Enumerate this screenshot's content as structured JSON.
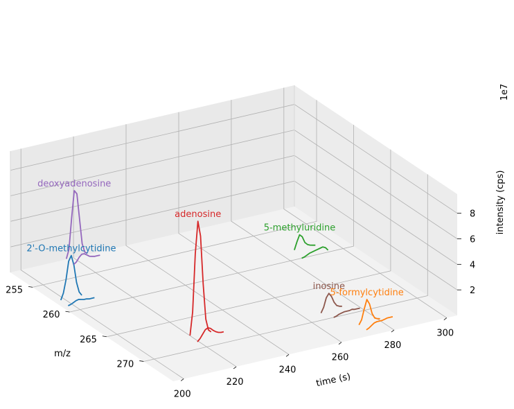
{
  "chart_data": {
    "type": "line",
    "projection": "3d",
    "xlabel": "time (s)",
    "ylabel": "m/z",
    "zlabel": "intensity (cps)",
    "z_offset_label": "1e7",
    "xlim": [
      196,
      304
    ],
    "ylim": [
      252,
      274
    ],
    "zlim": [
      0,
      9.5
    ],
    "z_units": "1e7 cps",
    "x_ticks": [
      "200",
      "220",
      "240",
      "260",
      "280",
      "300"
    ],
    "y_ticks": [
      "255",
      "260",
      "265",
      "270"
    ],
    "z_ticks": [
      "2",
      "4",
      "6",
      "8"
    ],
    "grid": true,
    "series": [
      {
        "name": "2'-O-methylcytidine",
        "color": "#1f77b4",
        "mz": 258.1,
        "t": [
          198,
          199,
          200,
          201,
          202,
          203,
          204,
          205,
          206
        ],
        "intensity": [
          0.1,
          0.6,
          1.6,
          3.0,
          3.4,
          2.6,
          1.2,
          0.4,
          0.1
        ],
        "satellite": {
          "mz": 259.1,
          "t": [
            198,
            199,
            200,
            201,
            202,
            203,
            204,
            205,
            206,
            207,
            208
          ],
          "intensity": [
            0.05,
            0.1,
            0.2,
            0.3,
            0.35,
            0.3,
            0.25,
            0.25,
            0.2,
            0.2,
            0.2
          ]
        }
      },
      {
        "name": "deoxyadenosine",
        "color": "#9467bd",
        "mz": 252.1,
        "t": [
          217,
          218,
          219,
          220,
          221,
          222,
          223,
          224,
          225
        ],
        "intensity": [
          0.1,
          0.8,
          3.2,
          5.3,
          5.0,
          3.0,
          1.0,
          0.3,
          0.15
        ],
        "satellite": {
          "mz": 253.1,
          "t": [
            217,
            218,
            219,
            220,
            221,
            222,
            223,
            224,
            225,
            226,
            227
          ],
          "intensity": [
            0.05,
            0.2,
            0.5,
            0.7,
            0.7,
            0.55,
            0.4,
            0.35,
            0.3,
            0.3,
            0.3
          ]
        }
      },
      {
        "name": "adenosine",
        "color": "#d62728",
        "mz": 268.1,
        "t": [
          219,
          220,
          221,
          222,
          223,
          224,
          225,
          226,
          227
        ],
        "intensity": [
          0.2,
          2.0,
          6.5,
          9.0,
          7.8,
          4.0,
          1.2,
          0.3,
          0.1
        ],
        "satellite": {
          "mz": 269.1,
          "t": [
            219,
            220,
            221,
            222,
            223,
            224,
            225,
            226,
            227,
            228,
            229
          ],
          "intensity": [
            0.1,
            0.3,
            0.6,
            0.9,
            1.0,
            0.9,
            0.7,
            0.55,
            0.45,
            0.4,
            0.4
          ]
        }
      },
      {
        "name": "5-methyluridine",
        "color": "#2ca02c",
        "mz": 259.1,
        "t": [
          284,
          285,
          286,
          287,
          288,
          289,
          290,
          291,
          292
        ],
        "intensity": [
          0.3,
          0.9,
          1.4,
          1.2,
          0.7,
          0.5,
          0.4,
          0.35,
          0.3
        ],
        "satellite": {
          "mz": 260.1,
          "t": [
            284,
            285,
            286,
            287,
            288,
            289,
            290,
            291,
            292,
            293,
            294
          ],
          "intensity": [
            0.05,
            0.1,
            0.2,
            0.3,
            0.35,
            0.4,
            0.45,
            0.5,
            0.55,
            0.45,
            0.2
          ]
        }
      },
      {
        "name": "inosine",
        "color": "#8c564b",
        "mz": 269.1,
        "t": [
          266,
          267,
          268,
          269,
          270,
          271,
          272,
          273,
          274
        ],
        "intensity": [
          0.1,
          0.5,
          1.2,
          1.5,
          1.2,
          0.7,
          0.4,
          0.3,
          0.25
        ],
        "satellite": {
          "mz": 270.1,
          "t": [
            268,
            269,
            270,
            271,
            272,
            273,
            274,
            275,
            276,
            277,
            278
          ],
          "intensity": [
            0.05,
            0.1,
            0.2,
            0.25,
            0.3,
            0.3,
            0.3,
            0.35,
            0.3,
            0.3,
            0.3
          ]
        }
      },
      {
        "name": "5-formylcytidine",
        "color": "#ff7f0e",
        "mz": 272.1,
        "t": [
          272,
          273,
          274,
          275,
          276,
          277,
          278,
          279,
          280
        ],
        "intensity": [
          0.05,
          0.4,
          1.2,
          1.9,
          1.5,
          0.7,
          0.3,
          0.2,
          0.15
        ],
        "satellite": {
          "mz": 273.1,
          "t": [
            272,
            273,
            274,
            275,
            276,
            277,
            278,
            279,
            280,
            281,
            282
          ],
          "intensity": [
            0.05,
            0.15,
            0.3,
            0.45,
            0.5,
            0.5,
            0.5,
            0.55,
            0.6,
            0.6,
            0.6
          ]
        }
      }
    ]
  }
}
